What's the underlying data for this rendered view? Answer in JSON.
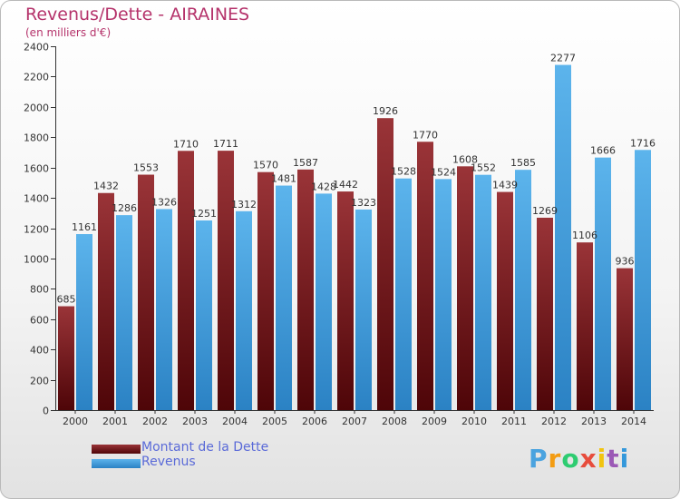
{
  "chart_data": {
    "type": "bar",
    "title": "Revenus/Dette - AIRAINES",
    "subtitle": "(en milliers d'€)",
    "xlabel": "",
    "ylabel": "",
    "ylim": [
      0,
      2400
    ],
    "yticks": [
      0,
      200,
      400,
      600,
      800,
      1000,
      1200,
      1400,
      1600,
      1800,
      2000,
      2200,
      2400
    ],
    "grid": false,
    "legend_position": "bottom-left",
    "categories": [
      "2000",
      "2001",
      "2002",
      "2003",
      "2004",
      "2005",
      "2006",
      "2007",
      "2008",
      "2009",
      "2010",
      "2011",
      "2012",
      "2013",
      "2014"
    ],
    "series": [
      {
        "name": "Montant de la Dette",
        "color": "#7a1c20",
        "values": [
          685,
          1432,
          1553,
          1710,
          1711,
          1570,
          1587,
          1442,
          1926,
          1770,
          1608,
          1439,
          1269,
          1106,
          936
        ],
        "labels": [
          "685",
          "1432",
          "1553",
          "1710",
          "1711",
          "1570",
          "1587",
          "1442",
          "1926",
          "1770",
          "1608",
          "1439",
          "1269",
          "1106",
          "936"
        ]
      },
      {
        "name": "Revenus",
        "color": "#3f9fdc",
        "values": [
          1161,
          1286,
          1326,
          1251,
          1312,
          1481,
          1428,
          1323,
          1528,
          1524,
          1552,
          1585,
          2277,
          1666,
          1716
        ],
        "labels": [
          "1161",
          "1286",
          "1326",
          "1251",
          "1312",
          "1481",
          "1428",
          "1323",
          "1528",
          "1524",
          "1552",
          "1585",
          "2277",
          "1666",
          "1716"
        ]
      }
    ]
  },
  "legend": {
    "debt_label": "Montant de la Dette",
    "revenue_label": "Revenus"
  },
  "logo": {
    "letters": [
      "P",
      "r",
      "o",
      "x",
      "i",
      "t",
      "i"
    ],
    "colors": [
      "#4aa3df",
      "#f39c12",
      "#2ecc71",
      "#e74c3c",
      "#f1c40f",
      "#9b59b6",
      "#3498db"
    ]
  }
}
